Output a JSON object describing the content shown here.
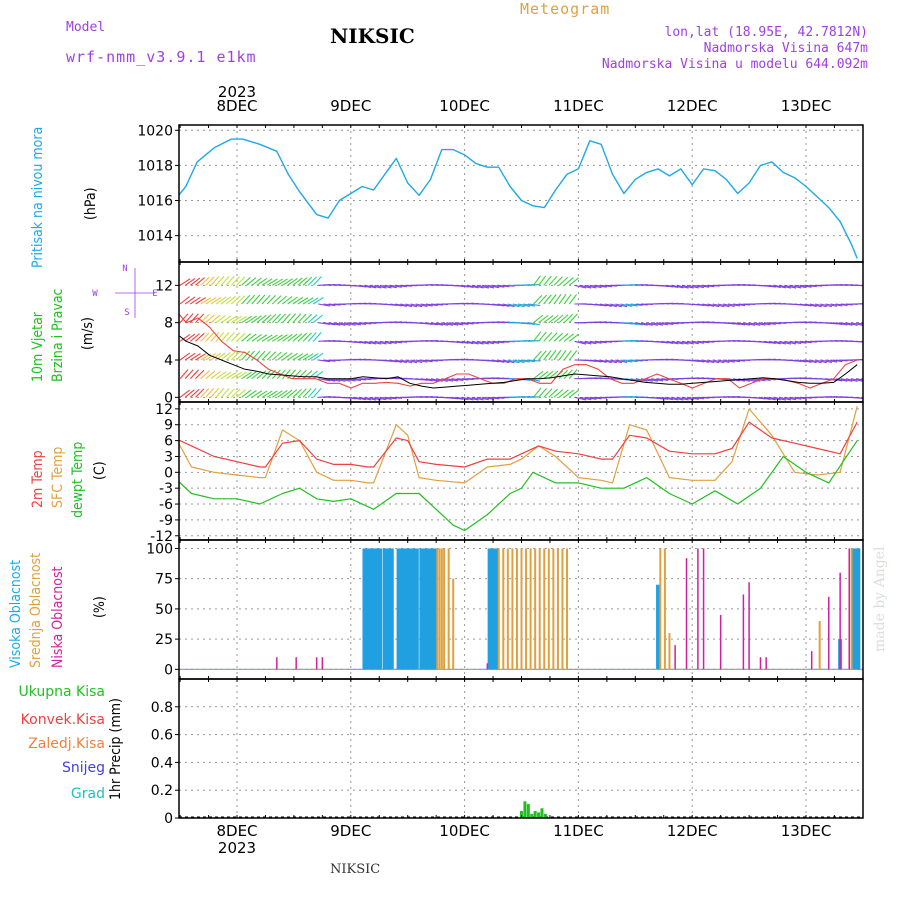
{
  "header": {
    "model_label": "Model",
    "model_name": "wrf-nmm_v3.9.1 e1km",
    "station": "NIKSIC",
    "product": "Meteogram",
    "lonlat": "lon,lat (18.95E, 42.7812N)",
    "altitude": "Nadmorska Visina 647m",
    "model_altitude": "Nadmorska Visina u modelu 644.092m",
    "footer_station": "NIKSIC",
    "watermark": "made by Angel"
  },
  "colors": {
    "pressure": "#20a8e8",
    "wind_label": "#20c020",
    "temp2m": "#f04040",
    "sfc": "#e0a040",
    "dewpt": "#20c020",
    "high_cloud": "#20a0e0",
    "mid_cloud": "#e0a040",
    "low_cloud": "#d020a0",
    "precip": "#20c020",
    "conv": "#f04040",
    "frozen": "#f08040",
    "snow": "#4040e0",
    "grad": "#20c0c0",
    "header_purple": "#a040e0"
  },
  "axes": {
    "top_year": "2023",
    "bottom_year": "2023",
    "dates": [
      "8DEC",
      "9DEC",
      "10DEC",
      "11DEC",
      "12DEC",
      "13DEC"
    ]
  },
  "panels": {
    "pressure": {
      "label": "Pritisak na nivou mora",
      "unit": "(hPa)"
    },
    "wind": {
      "label1": "10m Vjetar",
      "label2": "Brzina i Pravac",
      "unit": "(m/s)",
      "compass": {
        "n": "N",
        "w": "W",
        "e": "E",
        "s": "S"
      }
    },
    "temp": {
      "label1": "2m Temp",
      "label2": "SFC Temp",
      "label3": "dewpt Temp",
      "unit": "(C)"
    },
    "cloud": {
      "label1": "Visoka Oblacnost",
      "label2": "Srednja Oblacnost",
      "label3": "Niska Oblacnost",
      "unit": "(%)"
    },
    "precip": {
      "unit": "1hr Precip (mm)",
      "legend": [
        "Ukupna Kisa",
        "Konvek.Kisa",
        "Zaledj.Kisa",
        "Snijeg",
        "Grad"
      ]
    }
  },
  "chart_data": [
    {
      "type": "line",
      "title": "",
      "ylabel": "Pritisak na nivou mora (hPa)",
      "ylim": [
        1012.5,
        1020.3
      ],
      "yticks": [
        "1014",
        "1016",
        "1018",
        "1020"
      ],
      "x_unit": "days from 8DEC 00UTC",
      "series": [
        {
          "name": "Pritisak",
          "x": [
            -0.55,
            -0.45,
            -0.35,
            -0.2,
            -0.05,
            0.05,
            0.2,
            0.35,
            0.45,
            0.55,
            0.7,
            0.8,
            0.9,
            1.0,
            1.1,
            1.2,
            1.3,
            1.4,
            1.5,
            1.6,
            1.7,
            1.8,
            1.9,
            2.0,
            2.1,
            2.2,
            2.3,
            2.4,
            2.5,
            2.6,
            2.7,
            2.8,
            2.9,
            3.0,
            3.1,
            3.2,
            3.3,
            3.4,
            3.5,
            3.6,
            3.7,
            3.8,
            3.9,
            4.0,
            4.1,
            4.2,
            4.3,
            4.4,
            4.5,
            4.6,
            4.7,
            4.8,
            4.9,
            5.0,
            5.1,
            5.2,
            5.3,
            5.4,
            5.45
          ],
          "values": [
            1016.0,
            1016.8,
            1018.2,
            1019.0,
            1019.5,
            1019.5,
            1019.2,
            1018.8,
            1017.5,
            1016.5,
            1015.2,
            1015.0,
            1016.0,
            1016.4,
            1016.8,
            1016.6,
            1017.5,
            1018.4,
            1017.0,
            1016.3,
            1017.2,
            1018.9,
            1018.9,
            1018.6,
            1018.1,
            1017.9,
            1017.9,
            1016.8,
            1016.0,
            1015.7,
            1015.6,
            1016.6,
            1017.5,
            1017.8,
            1019.4,
            1019.2,
            1017.5,
            1016.4,
            1017.2,
            1017.6,
            1017.8,
            1017.4,
            1017.8,
            1016.9,
            1017.8,
            1017.7,
            1017.2,
            1016.4,
            1017.0,
            1018.0,
            1018.2,
            1017.6,
            1017.3,
            1016.8,
            1016.2,
            1015.6,
            1014.8,
            1013.5,
            1012.7
          ]
        }
      ]
    },
    {
      "type": "line",
      "title": "",
      "ylabel": "10m Vjetar Brzina i Pravac (m/s)",
      "ylim": [
        -0.5,
        14.5
      ],
      "yticks": [
        "0",
        "4",
        "8",
        "12"
      ],
      "series": [
        {
          "name": "2m Temp",
          "values": [
            9.5,
            8,
            8.5,
            7.5,
            6,
            5,
            4.8,
            4,
            3,
            2.5,
            2,
            2,
            2,
            1.5,
            1.5,
            1,
            1.5,
            1.5,
            1.6,
            1.5,
            1.2,
            1.5,
            1.5,
            2,
            2.5,
            2.5,
            2,
            1.5,
            1.5,
            2,
            2,
            1.5,
            1.5,
            3,
            3.5,
            3.5,
            3,
            2,
            1.5,
            1.5,
            2,
            2.5,
            2,
            1.5,
            1,
            1.5,
            2,
            2,
            1,
            1.5,
            2,
            2,
            1.8,
            1.5,
            1,
            1.5,
            2,
            3.5,
            4
          ]
        },
        {
          "name": "SFC Temp",
          "values": [
            7,
            6,
            5.5,
            4.5,
            4,
            3.5,
            3,
            2.8,
            2.5,
            2.4,
            2.3,
            2.2,
            2.2,
            2,
            2,
            2,
            2.2,
            2.1,
            2,
            2.2,
            1.5,
            1.2,
            1,
            1.1,
            1.2,
            1.3,
            1.4,
            1.5,
            1.6,
            1.8,
            2,
            2,
            2.1,
            2.3,
            2.5,
            2.4,
            2.3,
            2.2,
            2,
            1.8,
            1.6,
            1.5,
            1.4,
            1.4,
            1.5,
            1.6,
            1.7,
            1.8,
            1.9,
            2,
            2.1,
            2,
            1.8,
            1.6,
            1.5,
            1.5,
            1.6,
            2.5,
            3.5
          ]
        }
      ]
    },
    {
      "type": "line",
      "title": "",
      "ylabel": "2m Temp / SFC Temp / dewpt Temp (C)",
      "ylim": [
        -12,
        13
      ],
      "yticks": [
        "12",
        "9",
        "6",
        "3",
        "0",
        "-3",
        "-6",
        "-9",
        "-12"
      ],
      "series": [
        {
          "name": "2m Temp",
          "x": [
            -0.55,
            -0.4,
            -0.2,
            0,
            0.2,
            0.25,
            0.4,
            0.55,
            0.7,
            0.85,
            1.0,
            1.15,
            1.2,
            1.4,
            1.5,
            1.6,
            1.75,
            2.0,
            2.2,
            2.4,
            2.5,
            2.65,
            2.8,
            3.0,
            3.2,
            3.3,
            3.45,
            3.6,
            3.8,
            4.0,
            4.2,
            4.35,
            4.5,
            4.7,
            4.9,
            5.1,
            5.3,
            5.45
          ],
          "values": [
            6.5,
            5,
            3,
            2,
            1,
            1,
            5.5,
            6,
            2.5,
            1.5,
            1.5,
            1,
            1,
            6.5,
            6,
            2,
            1.5,
            1,
            2.5,
            2.5,
            3.5,
            5,
            4,
            3.5,
            2.5,
            2.5,
            7,
            6.5,
            4,
            3.5,
            3.5,
            4.5,
            9.5,
            6.5,
            5.5,
            4.5,
            3.5,
            9.5
          ]
        },
        {
          "name": "SFC Temp",
          "x": [
            -0.55,
            -0.4,
            -0.2,
            0,
            0.2,
            0.25,
            0.4,
            0.55,
            0.7,
            0.85,
            1.0,
            1.15,
            1.2,
            1.4,
            1.5,
            1.6,
            1.75,
            2.0,
            2.2,
            2.4,
            2.5,
            2.65,
            2.8,
            3.0,
            3.2,
            3.3,
            3.45,
            3.6,
            3.8,
            4.0,
            4.2,
            4.35,
            4.5,
            4.7,
            4.9,
            5.1,
            5.3,
            5.45
          ],
          "values": [
            7,
            1,
            0,
            -0.5,
            -1,
            -1,
            8,
            6,
            0,
            -1.5,
            -1.5,
            -2,
            -2,
            9,
            7,
            -1,
            -1.5,
            -2,
            1,
            1.5,
            2.5,
            5,
            3,
            -1,
            -1.5,
            -2,
            9,
            8,
            -1,
            -1.5,
            -1.5,
            2,
            12,
            7,
            0,
            -0.5,
            0,
            12.5
          ]
        },
        {
          "name": "dewpt Temp",
          "x": [
            -0.55,
            -0.4,
            -0.2,
            0,
            0.2,
            0.4,
            0.55,
            0.7,
            0.85,
            1.0,
            1.2,
            1.4,
            1.6,
            1.8,
            1.9,
            2.0,
            2.2,
            2.4,
            2.5,
            2.6,
            2.8,
            3.0,
            3.2,
            3.4,
            3.6,
            3.8,
            4.0,
            4.2,
            4.4,
            4.6,
            4.8,
            5.0,
            5.2,
            5.45
          ],
          "values": [
            -1,
            -4,
            -5,
            -5,
            -6,
            -4,
            -3,
            -5,
            -5.5,
            -5,
            -7,
            -4,
            -4,
            -8,
            -10,
            -11,
            -8,
            -4,
            -3,
            0,
            -2,
            -2,
            -3,
            -3,
            -1,
            -4,
            -6,
            -3.5,
            -6,
            -3,
            3,
            0,
            -2,
            6
          ]
        }
      ]
    },
    {
      "type": "bar",
      "title": "",
      "ylabel": "Oblacnost (%)",
      "ylim": [
        0,
        100
      ],
      "yticks": [
        "0",
        "25",
        "50",
        "75",
        "100"
      ],
      "series": [
        {
          "name": "Visoka Oblacnost",
          "x": [
            1.12,
            1.14,
            1.16,
            1.18,
            1.2,
            1.22,
            1.24,
            1.26,
            1.3,
            1.32,
            1.34,
            1.36,
            1.42,
            1.44,
            1.46,
            1.48,
            1.5,
            1.52,
            1.54,
            1.56,
            1.58,
            1.62,
            1.64,
            1.66,
            1.68,
            1.7,
            1.72,
            1.74,
            2.22,
            2.24,
            2.26,
            2.28,
            3.7,
            5.3,
            5.42,
            5.44,
            5.46
          ],
          "values": [
            100,
            100,
            100,
            100,
            100,
            100,
            100,
            100,
            100,
            100,
            100,
            100,
            100,
            100,
            100,
            100,
            100,
            100,
            100,
            100,
            100,
            100,
            100,
            100,
            100,
            100,
            100,
            100,
            100,
            100,
            100,
            100,
            70,
            25,
            100,
            100,
            100
          ]
        },
        {
          "name": "Srednja Oblacnost",
          "x": [
            1.76,
            1.78,
            1.8,
            1.82,
            1.86,
            1.9,
            2.3,
            2.34,
            2.38,
            2.42,
            2.46,
            2.5,
            2.54,
            2.58,
            2.62,
            2.66,
            2.7,
            2.74,
            2.78,
            2.82,
            2.86,
            2.9,
            3.72,
            3.76,
            3.8,
            5.12,
            5.4
          ],
          "values": [
            100,
            100,
            100,
            100,
            100,
            75,
            100,
            100,
            100,
            100,
            100,
            100,
            100,
            100,
            100,
            100,
            100,
            100,
            100,
            100,
            100,
            100,
            100,
            100,
            30,
            40,
            100
          ]
        },
        {
          "name": "Niska Oblacnost",
          "x": [
            0.35,
            0.52,
            0.7,
            0.75,
            2.2,
            3.85,
            3.95,
            4.05,
            4.1,
            4.25,
            4.45,
            4.5,
            4.6,
            4.65,
            5.05,
            5.2,
            5.3,
            5.38
          ],
          "values": [
            10,
            10,
            10,
            10,
            5,
            20,
            92,
            100,
            100,
            45,
            62,
            72,
            10,
            10,
            15,
            60,
            80,
            100
          ]
        }
      ]
    },
    {
      "type": "bar",
      "title": "",
      "ylabel": "1hr Precip (mm)",
      "ylim": [
        0,
        1.0
      ],
      "yticks": [
        "0",
        "0.2",
        "0.4",
        "0.6",
        "0.8"
      ],
      "series": [
        {
          "name": "Ukupna Kisa",
          "x": [
            2.5,
            2.53,
            2.56,
            2.59,
            2.62,
            2.65,
            2.68,
            2.71
          ],
          "values": [
            0.05,
            0.12,
            0.1,
            0.03,
            0.05,
            0.04,
            0.07,
            0.03
          ]
        }
      ]
    }
  ]
}
